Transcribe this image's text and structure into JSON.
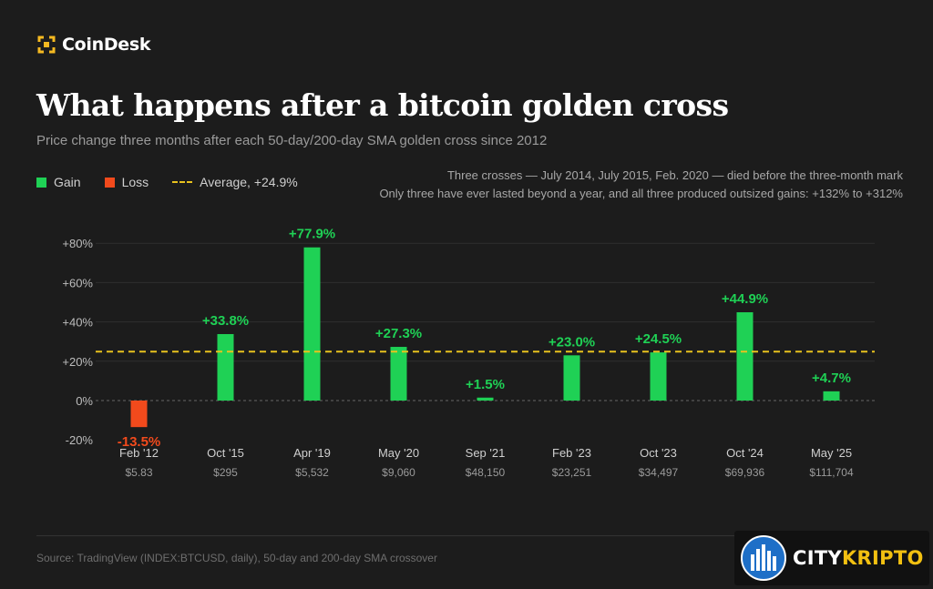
{
  "brand": {
    "name": "CoinDesk"
  },
  "header": {
    "title": "What happens after a bitcoin golden cross",
    "subtitle": "Price change three months after each 50-day/200-day SMA golden cross since 2012"
  },
  "legend": {
    "gain": "Gain",
    "loss": "Loss",
    "average": "Average, +24.9%"
  },
  "notes": {
    "line1": "Three crosses — July 2014, July 2015, Feb. 2020 — died before the three-month mark",
    "line2": "Only three have ever lasted beyond a year, and all three produced outsized gains: +132% to +312%"
  },
  "colors": {
    "gain": "#1fd155",
    "loss": "#f24a1c",
    "average": "#e8c21e"
  },
  "chart_data": {
    "type": "bar",
    "categories": [
      "Feb '12",
      "Oct '15",
      "Apr '19",
      "May '20",
      "Sep '21",
      "Feb '23",
      "Oct '23",
      "Oct '24",
      "May '25"
    ],
    "prices": [
      "$5.83",
      "$295",
      "$5,532",
      "$9,060",
      "$48,150",
      "$23,251",
      "$34,497",
      "$69,936",
      "$111,704"
    ],
    "values": [
      -13.5,
      33.8,
      77.9,
      27.3,
      1.5,
      23.0,
      24.5,
      44.9,
      4.7
    ],
    "value_labels": [
      "-13.5%",
      "+33.8%",
      "+77.9%",
      "+27.3%",
      "+1.5%",
      "+23.0%",
      "+24.5%",
      "+44.9%",
      "+4.7%"
    ],
    "average": 24.9,
    "ylim": [
      -20,
      80
    ],
    "yticks": [
      -20,
      0,
      20,
      40,
      60,
      80
    ],
    "ytick_labels": [
      "-20%",
      "0%",
      "+20%",
      "+40%",
      "+60%",
      "+80%"
    ],
    "grid": true
  },
  "footer": {
    "source": "Source: TradingView (INDEX:BTCUSD, daily), 50-day and 200-day SMA crossover"
  },
  "watermark": {
    "part1": "CITY",
    "part2": "KRIPTO"
  }
}
